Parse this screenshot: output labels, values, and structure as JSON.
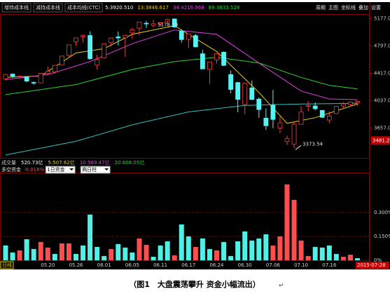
{
  "top_bar": {
    "tools": [
      "增持成本线",
      "减持成本线",
      "成本均线(CTC)"
    ],
    "values": [
      {
        "text": "5:3920.510",
        "color": "#ffffff"
      },
      {
        "text": "13:3846.617",
        "color": "#e8d000"
      },
      {
        "text": "34:4216.968",
        "color": "#e040e0"
      },
      {
        "text": "89:3833.528",
        "color": "#30d030"
      }
    ],
    "menu": [
      "周期",
      "主图",
      "坐标线",
      "叠加",
      "设置"
    ]
  },
  "volume_bar": [
    {
      "text": "成交量",
      "color": "#c0c0c0"
    },
    {
      "text": "520.73亿",
      "color": "#ffffff"
    },
    {
      "text": "5:507.62亿",
      "color": "#e8d000"
    },
    {
      "text": "10:569.47亿",
      "color": "#e040e0"
    },
    {
      "text": "20:608.05亿",
      "color": "#30d030"
    }
  ],
  "chart_data": [
    {
      "type": "candlestick",
      "open": [
        4340,
        4406,
        4372,
        4370,
        4290,
        4285,
        4415,
        4438,
        4531,
        4667,
        4854,
        4926,
        4943,
        4531,
        4629,
        4844,
        4924,
        4912,
        4980,
        5045,
        5114,
        5084,
        5101,
        5143,
        5174,
        5004,
        4890,
        4942,
        4689,
        4471,
        4604,
        4711,
        4399,
        4289,
        3983,
        4214,
        4058,
        3793,
        3975,
        3654,
        3467,
        3432,
        3707,
        3957,
        3962,
        3901,
        3766,
        3856,
        3962,
        3985,
        4004
      ],
      "high": [
        4402,
        4415,
        4386,
        4375,
        4302,
        4418,
        4510,
        4530,
        4658,
        4814,
        4911,
        4958,
        5001,
        4677,
        4829,
        4911,
        4999,
        4948,
        5051,
        5131,
        5147,
        5164,
        5130,
        5178.19,
        5176,
        5029,
        4968,
        4966,
        4744,
        4577,
        4691,
        4720,
        4456,
        4297,
        4287,
        4317,
        4080,
        3928,
        4185,
        3815,
        3549,
        3749,
        3959,
        4030,
        4013,
        3905,
        3885,
        3961,
        4017,
        4025,
        4034
      ],
      "low": [
        4317,
        4356,
        4335,
        4293,
        4257,
        4285,
        4401,
        4413,
        4531,
        4644,
        4800,
        4847,
        4605,
        4471,
        4629,
        4789,
        4804,
        4647,
        4898,
        4945,
        5049,
        5054,
        5071,
        5103,
        5048,
        4842,
        4767,
        4780,
        4476,
        4264,
        4552,
        4517,
        4139,
        3875,
        3847,
        4043,
        3796,
        3629,
        3654,
        3585,
        3421,
        3373.54,
        3707,
        3888,
        3902,
        3793,
        3722,
        3856,
        3936,
        3957,
        3967
      ],
      "close": [
        4401,
        4375,
        4378,
        4308,
        4283,
        4417,
        4446,
        4529,
        4657,
        4813,
        4910,
        4941,
        4620,
        4611,
        4828,
        4910,
        4909,
        4947,
        5023,
        5131,
        5113,
        5106,
        5121,
        5166,
        5062,
        4887,
        4967,
        4785,
        4478,
        4576,
        4690,
        4527,
        4192,
        4053,
        4277,
        4053,
        3912,
        3687,
        3775,
        3727,
        3507,
        3710,
        3877,
        3970,
        3924,
        3805,
        3823,
        3957,
        3992,
        4017,
        4026
      ],
      "up_color": "#ff3b3b",
      "down_color": "#54f4f4",
      "ylim": [
        3240,
        5320
      ],
      "yticks": [
        {
          "value": 5177,
          "label": "5177.0"
        },
        {
          "value": 4797,
          "label": "4797.0"
        },
        {
          "value": 4417,
          "label": "4417.0"
        },
        {
          "value": 4037,
          "label": "4037.0"
        },
        {
          "value": 3657,
          "label": "3657.0"
        }
      ],
      "price_marker": 3481.2,
      "lines": [
        {
          "color": "#e8d000",
          "x": [
            0,
            5,
            10,
            14,
            18,
            24,
            30,
            36,
            40,
            44,
            50
          ],
          "values": [
            4360,
            4380,
            4700,
            4760,
            4960,
            5080,
            4720,
            4150,
            3720,
            3800,
            3990
          ]
        },
        {
          "color": "#e040e0",
          "x": [
            0,
            6,
            12,
            18,
            24,
            30,
            36,
            42,
            46,
            50
          ],
          "values": [
            4330,
            4400,
            4580,
            4830,
            5020,
            4960,
            4560,
            4170,
            4060,
            4050
          ]
        },
        {
          "color": "#30d030",
          "x": [
            0,
            10,
            18,
            24,
            30,
            36,
            42,
            46,
            50
          ],
          "values": [
            4120,
            4260,
            4470,
            4580,
            4640,
            4560,
            4360,
            4250,
            4200
          ]
        },
        {
          "color": "#30c0c0",
          "x": [
            0,
            10,
            18,
            26,
            34,
            42,
            50
          ],
          "values": [
            3280,
            3470,
            3700,
            3880,
            3970,
            3990,
            4000
          ]
        }
      ]
    },
    {
      "type": "bar",
      "title": "多空资金",
      "title_value": "-0.018%",
      "controls": [
        "1日资金",
        "两日柱"
      ],
      "categories": [
        null,
        null,
        null,
        null,
        null,
        null,
        "05.20",
        null,
        null,
        null,
        "05.26",
        null,
        null,
        null,
        "06.01",
        null,
        null,
        null,
        "06.05",
        null,
        null,
        null,
        "06.11",
        null,
        null,
        null,
        "06.17",
        null,
        null,
        null,
        "06.24",
        null,
        null,
        null,
        "06.30",
        null,
        null,
        null,
        "07.06",
        null,
        null,
        null,
        "07.10",
        null,
        null,
        null,
        "07.16",
        null,
        null,
        null,
        null
      ],
      "values": [
        0.093,
        0.049,
        0.062,
        0.132,
        0.071,
        0.115,
        0.08,
        0.04,
        0.106,
        0.106,
        0.04,
        0.093,
        0.287,
        0.084,
        0.027,
        0.071,
        0.102,
        0.08,
        0.049,
        0.137,
        0.097,
        0.022,
        0.093,
        0.119,
        0.031,
        0.225,
        0.15,
        0.084,
        0.137,
        0.071,
        0.062,
        0.115,
        0.027,
        0.119,
        0.181,
        0.124,
        0.137,
        0.163,
        0.093,
        0.15,
        0.476,
        0.379,
        0.124,
        0.027,
        0.084,
        0.08,
        0.093,
        0.04,
        0.022,
        0.035,
        0.013
      ],
      "bar_colors": [
        "#4ff0e6",
        "#4ff0e6",
        "#ff4d4d",
        "#4ff0e6",
        "#4ff0e6",
        "#ff4d4d",
        "#ff4d4d",
        "#4ff0e6",
        "#ff4d4d",
        "#ff4d4d",
        "#4ff0e6",
        "#4ff0e6",
        "#4ff0e6",
        "#4ff0e6",
        "#4ff0e6",
        "#ff4d4d",
        "#4ff0e6",
        "#4ff0e6",
        "#4ff0e6",
        "#ff4d4d",
        "#ff4d4d",
        "#4ff0e6",
        "#4ff0e6",
        "#4ff0e6",
        "#ff4d4d",
        "#4ff0e6",
        "#4ff0e6",
        "#ff4d4d",
        "#4ff0e6",
        "#4ff0e6",
        "#ff4d4d",
        "#4ff0e6",
        "#4ff0e6",
        "#4ff0e6",
        "#4ff0e6",
        "#4ff0e6",
        "#4ff0e6",
        "#4ff0e6",
        "#ff4d4d",
        "#ff4d4d",
        "#ff4d4d",
        "#ff4d4d",
        "#ff4d4d",
        "#ff4d4d",
        "#4ff0e6",
        "#4ff0e6",
        "#4ff0e6",
        "#4ff0e6",
        "#ff4d4d",
        "#ff4d4d",
        "#4ff0e6"
      ],
      "ylim": [
        0,
        0.55
      ],
      "yticks": [
        {
          "value": 0,
          "label": "0%"
        },
        {
          "value": 0.15,
          "label": "0.150%"
        },
        {
          "value": 0.3,
          "label": "0.300%"
        }
      ],
      "grid": true,
      "period_label": "日线",
      "cursor_label": "2015-07-28"
    }
  ],
  "caption": "（图1　大盘震荡攀升  资金小幅流出）",
  "caption_mark": "↵"
}
